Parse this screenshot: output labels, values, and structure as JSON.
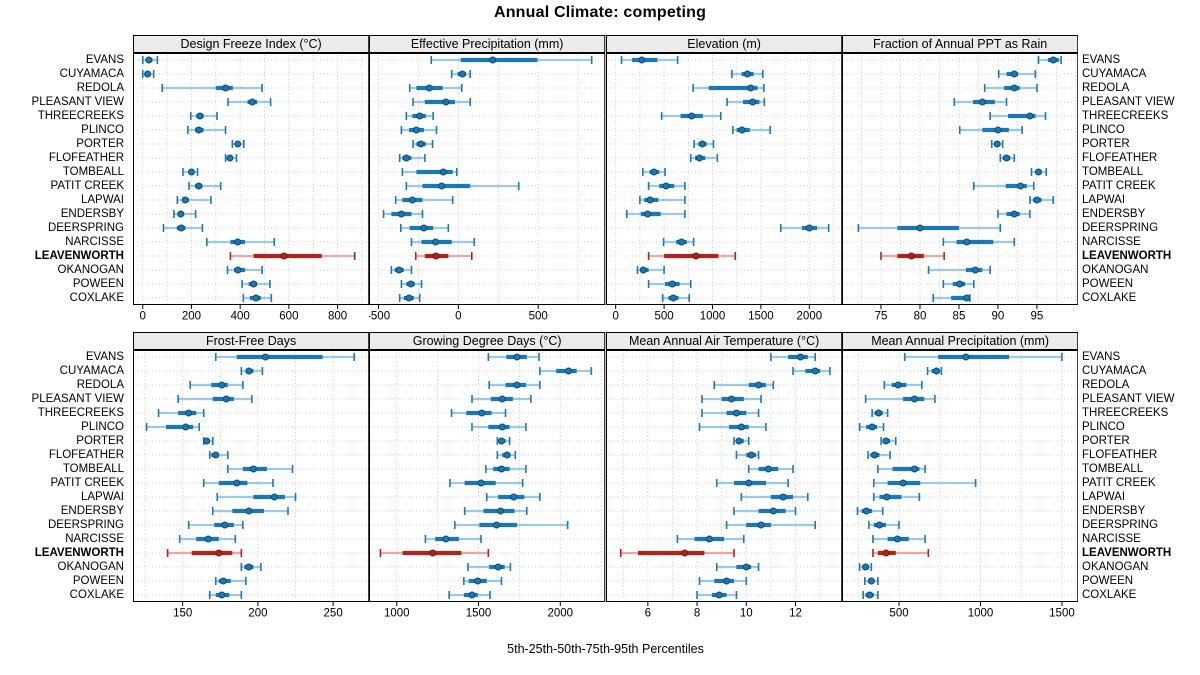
{
  "title": "Annual Climate: competing",
  "caption": "5th-25th-50th-75th-95th Percentiles",
  "colors": {
    "blue": "#1c77b4",
    "blue_light": "#9ec9e2",
    "blue_dark": "#0d4d77",
    "red": "#b2231d",
    "red_light": "#e9a9a4",
    "red_dark": "#7c150f",
    "strip_bg": "#ebebeb",
    "grid": "#c9c9c9",
    "border": "#000000"
  },
  "chart_data": {
    "type": "dotplot",
    "subtype": "percentile-range-trellis",
    "percentile_labels": [
      "5th",
      "25th",
      "50th",
      "75th",
      "95th"
    ],
    "legend_position": "bottom-caption",
    "grid": "dotted",
    "highlight": "LEAVENWORTH",
    "categories": [
      "EVANS",
      "CUYAMACA",
      "REDOLA",
      "PLEASANT VIEW",
      "THREECREEKS",
      "PLINCO",
      "PORTER",
      "FLOFEATHER",
      "TOMBEALL",
      "PATIT CREEK",
      "LAPWAI",
      "ENDERSBY",
      "DEERSPRING",
      "NARCISSE",
      "LEAVENWORTH",
      "OKANOGAN",
      "POWEEN",
      "COXLAKE"
    ],
    "panels": [
      {
        "title": "Design Freeze Index (°C)",
        "xlim": [
          -40,
          930
        ],
        "ticks": [
          0,
          200,
          400,
          600,
          800
        ],
        "values": [
          [
            0,
            15,
            25,
            40,
            60
          ],
          [
            0,
            10,
            20,
            30,
            45
          ],
          [
            80,
            300,
            340,
            370,
            490
          ],
          [
            350,
            430,
            450,
            470,
            525
          ],
          [
            197,
            220,
            235,
            250,
            305
          ],
          [
            185,
            215,
            230,
            250,
            340
          ],
          [
            368,
            380,
            390,
            400,
            415
          ],
          [
            340,
            350,
            358,
            368,
            385
          ],
          [
            165,
            190,
            200,
            210,
            225
          ],
          [
            190,
            215,
            230,
            245,
            320
          ],
          [
            142,
            162,
            174,
            190,
            280
          ],
          [
            128,
            145,
            156,
            170,
            217
          ],
          [
            85,
            140,
            158,
            175,
            245
          ],
          [
            263,
            360,
            390,
            420,
            540
          ],
          [
            360,
            455,
            580,
            735,
            870
          ],
          [
            348,
            375,
            391,
            420,
            490
          ],
          [
            408,
            435,
            455,
            470,
            522
          ],
          [
            413,
            440,
            465,
            485,
            528
          ]
        ]
      },
      {
        "title": "Effective Precipitation (mm)",
        "xlim": [
          -560,
          920
        ],
        "ticks": [
          -500,
          0,
          500
        ],
        "values": [
          [
            -170,
            15,
            215,
            495,
            835
          ],
          [
            -42,
            -5,
            25,
            48,
            74
          ],
          [
            -305,
            -263,
            -183,
            -99,
            21
          ],
          [
            -284,
            -210,
            -78,
            -21,
            74
          ],
          [
            -326,
            -288,
            -242,
            -204,
            -158
          ],
          [
            -357,
            -309,
            -263,
            -216,
            -137
          ],
          [
            -284,
            -263,
            -235,
            -204,
            -162
          ],
          [
            -368,
            -351,
            -326,
            -294,
            -210
          ],
          [
            -351,
            -263,
            -95,
            -36,
            -10
          ],
          [
            -326,
            -225,
            -105,
            74,
            378
          ],
          [
            -393,
            -351,
            -288,
            -225,
            -36
          ],
          [
            -469,
            -420,
            -357,
            -294,
            -225
          ],
          [
            -361,
            -305,
            -216,
            -158,
            -63
          ],
          [
            -294,
            -231,
            -143,
            -42,
            99
          ],
          [
            -267,
            -210,
            -141,
            -63,
            84
          ],
          [
            -420,
            -399,
            -372,
            -342,
            -294
          ],
          [
            -357,
            -326,
            -298,
            -273,
            -231
          ],
          [
            -368,
            -342,
            -309,
            -279,
            -242
          ]
        ]
      },
      {
        "title": "Elevation (m)",
        "xlim": [
          -100,
          2340
        ],
        "ticks": [
          0,
          500,
          1000,
          1500,
          2000
        ],
        "values": [
          [
            60,
            170,
            270,
            430,
            640
          ],
          [
            1200,
            1300,
            1360,
            1425,
            1520
          ],
          [
            800,
            960,
            1395,
            1465,
            1530
          ],
          [
            1150,
            1315,
            1415,
            1485,
            1535
          ],
          [
            475,
            670,
            785,
            900,
            1085
          ],
          [
            1210,
            1250,
            1305,
            1385,
            1595
          ],
          [
            810,
            855,
            895,
            940,
            1010
          ],
          [
            775,
            820,
            865,
            925,
            1050
          ],
          [
            280,
            350,
            395,
            450,
            510
          ],
          [
            340,
            450,
            520,
            605,
            715
          ],
          [
            250,
            295,
            355,
            440,
            715
          ],
          [
            115,
            260,
            330,
            465,
            715
          ],
          [
            1705,
            1925,
            2000,
            2080,
            2200
          ],
          [
            495,
            625,
            680,
            735,
            805
          ],
          [
            340,
            500,
            830,
            1060,
            1235
          ],
          [
            225,
            250,
            285,
            340,
            500
          ],
          [
            340,
            510,
            585,
            660,
            775
          ],
          [
            485,
            545,
            595,
            650,
            760
          ]
        ]
      },
      {
        "title": "Fraction of Annual PPT as Rain",
        "xlim": [
          70,
          100.3
        ],
        "ticks": [
          75,
          80,
          85,
          90,
          95
        ],
        "values": [
          [
            95.2,
            96.4,
            97.1,
            97.8,
            98.1
          ],
          [
            90.1,
            91.1,
            92.1,
            92.6,
            94.8
          ],
          [
            88.3,
            90.8,
            92.1,
            92.8,
            95.0
          ],
          [
            84.4,
            86.8,
            88.0,
            89.6,
            91.1
          ],
          [
            89.0,
            91.3,
            94.1,
            94.8,
            96.1
          ],
          [
            85.1,
            88.0,
            90.0,
            91.4,
            93.1
          ],
          [
            89.2,
            89.5,
            89.9,
            90.3,
            90.6
          ],
          [
            90.3,
            90.6,
            91.1,
            91.6,
            92.1
          ],
          [
            94.3,
            94.8,
            95.2,
            95.6,
            96.2
          ],
          [
            86.9,
            91.0,
            92.9,
            93.7,
            94.6
          ],
          [
            94.1,
            94.5,
            95.0,
            95.6,
            97.1
          ],
          [
            90.0,
            91.1,
            92.1,
            92.8,
            94.1
          ],
          [
            72.1,
            77.1,
            80.0,
            85.0,
            90.3
          ],
          [
            83.0,
            84.7,
            86.0,
            89.4,
            92.1
          ],
          [
            75.0,
            77.1,
            78.9,
            80.5,
            83.1
          ],
          [
            81.1,
            85.9,
            87.1,
            88.0,
            89.0
          ],
          [
            83.0,
            84.2,
            85.1,
            85.8,
            86.9
          ],
          [
            81.7,
            84.0,
            86.0,
            86.2,
            86.4
          ]
        ]
      },
      {
        "title": "Frost-Free Days",
        "xlim": [
          117,
          274
        ],
        "ticks": [
          150,
          200,
          250
        ],
        "values": [
          [
            172,
            186,
            205,
            243,
            264
          ],
          [
            189,
            192,
            194,
            197,
            203
          ],
          [
            155,
            169,
            176,
            180,
            190
          ],
          [
            147,
            170,
            179,
            184,
            196
          ],
          [
            134,
            147,
            154,
            159,
            164
          ],
          [
            126,
            139,
            152,
            157,
            161
          ],
          [
            164,
            165,
            166,
            168,
            170
          ],
          [
            168,
            169,
            172,
            174,
            180
          ],
          [
            180,
            190,
            197,
            206,
            223
          ],
          [
            164,
            174,
            186,
            193,
            210
          ],
          [
            173,
            197,
            211,
            218,
            225
          ],
          [
            170,
            183,
            194,
            204,
            220
          ],
          [
            154,
            171,
            178,
            184,
            190
          ],
          [
            148,
            159,
            167,
            174,
            185
          ],
          [
            140,
            156,
            174,
            183,
            189
          ],
          [
            189,
            191,
            194,
            197,
            202
          ],
          [
            172,
            174,
            177,
            182,
            192
          ],
          [
            168,
            172,
            176,
            181,
            189
          ]
        ]
      },
      {
        "title": "Growing Degree Days (°C)",
        "xlim": [
          830,
          2275
        ],
        "ticks": [
          1000,
          1500,
          2000
        ],
        "values": [
          [
            1560,
            1670,
            1735,
            1795,
            1870
          ],
          [
            1875,
            1975,
            2050,
            2100,
            2190
          ],
          [
            1565,
            1665,
            1735,
            1790,
            1875
          ],
          [
            1460,
            1575,
            1645,
            1710,
            1820
          ],
          [
            1335,
            1425,
            1520,
            1580,
            1665
          ],
          [
            1460,
            1560,
            1645,
            1690,
            1790
          ],
          [
            1615,
            1625,
            1640,
            1665,
            1690
          ],
          [
            1615,
            1645,
            1675,
            1695,
            1725
          ],
          [
            1545,
            1590,
            1640,
            1690,
            1790
          ],
          [
            1325,
            1415,
            1515,
            1605,
            1770
          ],
          [
            1550,
            1620,
            1715,
            1780,
            1875
          ],
          [
            1415,
            1530,
            1635,
            1720,
            1795
          ],
          [
            1355,
            1505,
            1610,
            1735,
            2045
          ],
          [
            1175,
            1235,
            1300,
            1380,
            1515
          ],
          [
            900,
            1035,
            1220,
            1395,
            1560
          ],
          [
            1435,
            1565,
            1620,
            1660,
            1695
          ],
          [
            1410,
            1440,
            1495,
            1550,
            1640
          ],
          [
            1320,
            1410,
            1460,
            1495,
            1570
          ]
        ]
      },
      {
        "title": "Mean Annual Air Temperature (°C)",
        "xlim": [
          4.3,
          13.9
        ],
        "ticks": [
          6,
          8,
          10,
          12
        ],
        "values": [
          [
            11.0,
            11.7,
            12.2,
            12.5,
            12.8
          ],
          [
            11.9,
            12.4,
            12.8,
            13.0,
            13.4
          ],
          [
            8.7,
            10.1,
            10.5,
            10.8,
            11.1
          ],
          [
            8.2,
            9.0,
            9.4,
            9.9,
            10.6
          ],
          [
            8.2,
            9.2,
            9.6,
            10.0,
            10.5
          ],
          [
            8.1,
            9.3,
            9.8,
            10.1,
            10.8
          ],
          [
            9.5,
            9.6,
            9.7,
            9.9,
            10.1
          ],
          [
            9.6,
            10.0,
            10.2,
            10.4,
            10.5
          ],
          [
            10.1,
            10.5,
            10.9,
            11.3,
            11.9
          ],
          [
            8.8,
            9.5,
            10.1,
            10.8,
            11.7
          ],
          [
            9.8,
            11.0,
            11.5,
            11.9,
            12.5
          ],
          [
            9.5,
            10.5,
            11.1,
            11.6,
            12.0
          ],
          [
            9.2,
            10.0,
            10.6,
            11.0,
            12.8
          ],
          [
            7.2,
            7.9,
            8.5,
            9.1,
            9.9
          ],
          [
            4.9,
            5.6,
            7.5,
            8.3,
            9.5
          ],
          [
            8.8,
            9.6,
            10.0,
            10.2,
            10.5
          ],
          [
            8.1,
            8.7,
            9.2,
            9.5,
            10.0
          ],
          [
            8.0,
            8.6,
            8.9,
            9.2,
            9.6
          ]
        ]
      },
      {
        "title": "Mean Annual Precipitation (mm)",
        "xlim": [
          150,
          1600
        ],
        "ticks": [
          500,
          1000,
          1500
        ],
        "values": [
          [
            535,
            740,
            910,
            1175,
            1500
          ],
          [
            675,
            700,
            730,
            750,
            760
          ],
          [
            410,
            455,
            495,
            545,
            640
          ],
          [
            295,
            525,
            595,
            655,
            720
          ],
          [
            335,
            350,
            375,
            400,
            430
          ],
          [
            258,
            298,
            335,
            365,
            405
          ],
          [
            390,
            400,
            420,
            445,
            480
          ],
          [
            310,
            325,
            350,
            380,
            445
          ],
          [
            370,
            460,
            595,
            625,
            660
          ],
          [
            345,
            430,
            525,
            630,
            970
          ],
          [
            345,
            380,
            425,
            515,
            625
          ],
          [
            245,
            270,
            300,
            335,
            400
          ],
          [
            315,
            345,
            380,
            420,
            500
          ],
          [
            340,
            430,
            490,
            560,
            660
          ],
          [
            340,
            370,
            420,
            480,
            680
          ],
          [
            258,
            275,
            295,
            315,
            330
          ],
          [
            290,
            310,
            330,
            350,
            370
          ],
          [
            280,
            295,
            320,
            345,
            370
          ]
        ]
      }
    ]
  }
}
